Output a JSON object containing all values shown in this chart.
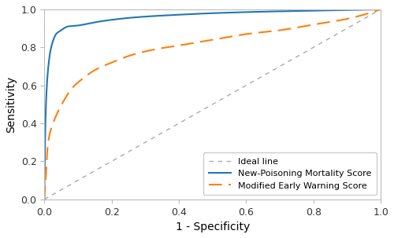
{
  "xlabel": "1 - Specificity",
  "ylabel": "Sensitivity",
  "xlim": [
    0.0,
    1.0
  ],
  "ylim": [
    0.0,
    1.0
  ],
  "xticks": [
    0.0,
    0.2,
    0.4,
    0.6,
    0.8,
    1.0
  ],
  "yticks": [
    0.0,
    0.2,
    0.4,
    0.6,
    0.8,
    1.0
  ],
  "line1_color": "#1f77b4",
  "line2_color": "#ff7f0e",
  "ideal_color": "#aaaaaa",
  "legend_labels": [
    "New-Poisoning Mortality Score",
    "Modified Early Warning Score",
    "Ideal line"
  ],
  "figsize": [
    5.0,
    3.03
  ],
  "dpi": 100,
  "roc1_fpr": [
    0.0,
    0.003,
    0.007,
    0.012,
    0.018,
    0.025,
    0.035,
    0.05,
    0.07,
    0.1,
    0.13,
    0.16,
    0.2,
    0.25,
    0.3,
    0.4,
    0.5,
    0.65,
    0.8,
    1.0
  ],
  "roc1_tpr": [
    0.0,
    0.38,
    0.58,
    0.7,
    0.78,
    0.83,
    0.87,
    0.89,
    0.91,
    0.915,
    0.925,
    0.935,
    0.945,
    0.955,
    0.962,
    0.972,
    0.98,
    0.988,
    0.993,
    1.0
  ],
  "roc2_fpr": [
    0.0,
    0.005,
    0.01,
    0.02,
    0.035,
    0.055,
    0.08,
    0.11,
    0.15,
    0.2,
    0.26,
    0.33,
    0.4,
    0.5,
    0.6,
    0.7,
    0.8,
    0.9,
    1.0
  ],
  "roc2_tpr": [
    0.0,
    0.13,
    0.28,
    0.37,
    0.44,
    0.51,
    0.58,
    0.63,
    0.68,
    0.72,
    0.76,
    0.79,
    0.81,
    0.84,
    0.87,
    0.89,
    0.92,
    0.95,
    1.0
  ]
}
